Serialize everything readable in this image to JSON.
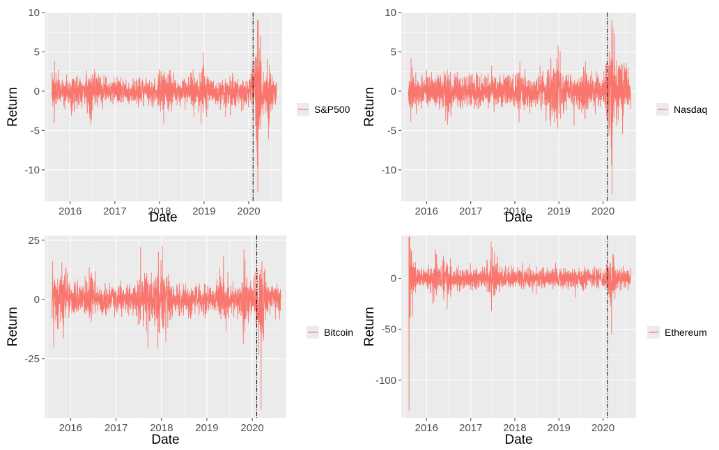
{
  "colors": {
    "series": "#f8766d",
    "panel_background": "#ebebeb",
    "grid": "#ffffff",
    "event_line": "#000000"
  },
  "chart_data": [
    {
      "type": "line",
      "xlabel": "Date",
      "ylabel": "Return",
      "x_ticks": [
        "2016",
        "2017",
        "2018",
        "2019",
        "2020"
      ],
      "y_ticks": [
        -10,
        -5,
        0,
        5,
        10
      ],
      "xlim": [
        "2015-06-06",
        "2020-10-01"
      ],
      "ylim": [
        -14,
        10
      ],
      "event_line_date": "2020-02-06",
      "grid": true,
      "legend_position": "right",
      "series": [
        {
          "name": "S&P500",
          "color": "#f8766d",
          "typical_amplitude": 0.8,
          "points": [
            {
              "x": "2015-08-04",
              "y": 0
            },
            {
              "x": "2015-08-24",
              "y": -4.0
            },
            {
              "x": "2015-08-26",
              "y": 3.8
            },
            {
              "x": "2016-01-20",
              "y": -2.5
            },
            {
              "x": "2016-06-24",
              "y": -3.6
            },
            {
              "x": "2018-02-05",
              "y": -4.1
            },
            {
              "x": "2018-02-06",
              "y": 1.7
            },
            {
              "x": "2018-03-26",
              "y": 2.7
            },
            {
              "x": "2018-10-10",
              "y": -3.3
            },
            {
              "x": "2018-12-24",
              "y": -2.7
            },
            {
              "x": "2018-12-26",
              "y": 4.9
            },
            {
              "x": "2019-08-05",
              "y": -3.0
            },
            {
              "x": "2020-02-27",
              "y": -4.4
            },
            {
              "x": "2020-03-02",
              "y": 4.6
            },
            {
              "x": "2020-03-09",
              "y": -7.6
            },
            {
              "x": "2020-03-12",
              "y": -9.5
            },
            {
              "x": "2020-03-13",
              "y": 9.0
            },
            {
              "x": "2020-03-16",
              "y": -12.8
            },
            {
              "x": "2020-03-24",
              "y": 9.0
            },
            {
              "x": "2020-04-06",
              "y": 7.0
            },
            {
              "x": "2020-06-11",
              "y": -6.1
            },
            {
              "x": "2020-08-17",
              "y": 0
            }
          ]
        }
      ]
    },
    {
      "type": "line",
      "xlabel": "Date",
      "ylabel": "Return",
      "x_ticks": [
        "2016",
        "2017",
        "2018",
        "2019",
        "2020"
      ],
      "y_ticks": [
        -10,
        -5,
        0,
        5,
        10
      ],
      "xlim": [
        "2015-06-06",
        "2020-10-01"
      ],
      "ylim": [
        -14,
        10
      ],
      "event_line_date": "2020-02-06",
      "grid": true,
      "legend_position": "right",
      "series": [
        {
          "name": "Nasdaq",
          "color": "#f8766d",
          "typical_amplitude": 1.0,
          "points": [
            {
              "x": "2015-08-04",
              "y": 0
            },
            {
              "x": "2015-08-24",
              "y": -3.9
            },
            {
              "x": "2015-08-26",
              "y": 4.2
            },
            {
              "x": "2016-06-24",
              "y": -4.2
            },
            {
              "x": "2018-02-05",
              "y": -3.9
            },
            {
              "x": "2018-10-24",
              "y": -4.4
            },
            {
              "x": "2018-12-26",
              "y": 5.8
            },
            {
              "x": "2019-08-05",
              "y": -3.5
            },
            {
              "x": "2020-02-27",
              "y": -4.6
            },
            {
              "x": "2020-03-09",
              "y": -7.3
            },
            {
              "x": "2020-03-12",
              "y": -9.4
            },
            {
              "x": "2020-03-13",
              "y": 9.0
            },
            {
              "x": "2020-03-16",
              "y": -13.1
            },
            {
              "x": "2020-03-24",
              "y": 8.1
            },
            {
              "x": "2020-04-06",
              "y": 7.3
            },
            {
              "x": "2020-06-11",
              "y": -5.4
            },
            {
              "x": "2020-08-17",
              "y": 0
            }
          ]
        }
      ]
    },
    {
      "type": "line",
      "xlabel": "Date",
      "ylabel": "Return",
      "x_ticks": [
        "2016",
        "2017",
        "2018",
        "2019",
        "2020"
      ],
      "y_ticks": [
        -25,
        0,
        25
      ],
      "xlim": [
        "2015-06-06",
        "2020-10-01"
      ],
      "ylim": [
        -50,
        27
      ],
      "event_line_date": "2020-02-06",
      "grid": true,
      "legend_position": "right",
      "series": [
        {
          "name": "Bitcoin",
          "color": "#f8766d",
          "typical_amplitude": 3.2,
          "points": [
            {
              "x": "2015-08-04",
              "y": 0
            },
            {
              "x": "2015-08-18",
              "y": -20.0
            },
            {
              "x": "2015-11-04",
              "y": -16.5
            },
            {
              "x": "2016-06-17",
              "y": 11.0
            },
            {
              "x": "2017-07-17",
              "y": 22.0
            },
            {
              "x": "2017-09-14",
              "y": -20.5
            },
            {
              "x": "2017-12-07",
              "y": 20.0
            },
            {
              "x": "2018-01-08",
              "y": 22.5
            },
            {
              "x": "2018-02-05",
              "y": -18.0
            },
            {
              "x": "2019-05-14",
              "y": 18.0
            },
            {
              "x": "2019-10-26",
              "y": 21.0
            },
            {
              "x": "2020-03-12",
              "y": -46.5
            },
            {
              "x": "2020-03-19",
              "y": 16.0
            },
            {
              "x": "2020-08-17",
              "y": 0
            }
          ]
        }
      ]
    },
    {
      "type": "line",
      "xlabel": "Date",
      "ylabel": "Return",
      "x_ticks": [
        "2016",
        "2017",
        "2018",
        "2019",
        "2020"
      ],
      "y_ticks": [
        -100,
        -50,
        0
      ],
      "xlim": [
        "2015-06-06",
        "2020-10-01"
      ],
      "ylim": [
        -137,
        42
      ],
      "event_line_date": "2020-02-06",
      "grid": true,
      "legend_position": "right",
      "series": [
        {
          "name": "Ethereum",
          "color": "#f8766d",
          "typical_amplitude": 5.0,
          "points": [
            {
              "x": "2015-08-08",
              "y": 40.0
            },
            {
              "x": "2015-08-09",
              "y": -130.0
            },
            {
              "x": "2015-08-20",
              "y": 12.0
            },
            {
              "x": "2016-03-13",
              "y": 28.0
            },
            {
              "x": "2016-06-20",
              "y": -30.0
            },
            {
              "x": "2017-06-22",
              "y": -32.0
            },
            {
              "x": "2017-07-17",
              "y": 25.0
            },
            {
              "x": "2020-03-12",
              "y": -55.0
            },
            {
              "x": "2020-08-17",
              "y": 0
            }
          ]
        }
      ]
    }
  ]
}
